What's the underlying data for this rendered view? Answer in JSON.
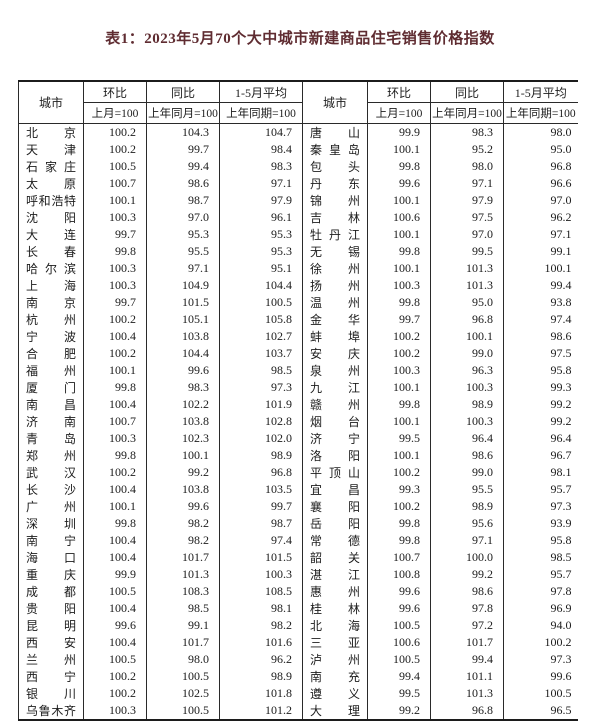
{
  "title": {
    "text": "表1：2023年5月70个大中城市新建商品住宅销售价格指数",
    "color": "#5f2c31"
  },
  "colors": {
    "border": "#2a2a2a",
    "text": "#1c1c1c",
    "background": "#ffffff"
  },
  "table": {
    "header": {
      "city": "城市",
      "mom": "环比",
      "yoy": "同比",
      "avg": "1-5月平均",
      "mom_base": "上月=100",
      "yoy_base": "上年同月=100",
      "avg_base": "上年同期=100"
    },
    "left_rows": [
      {
        "city": "北京",
        "mom": "100.2",
        "yoy": "104.3",
        "avg": "104.7"
      },
      {
        "city": "天津",
        "mom": "100.2",
        "yoy": "99.7",
        "avg": "98.4"
      },
      {
        "city": "石家庄",
        "mom": "100.5",
        "yoy": "99.4",
        "avg": "98.3"
      },
      {
        "city": "太原",
        "mom": "100.7",
        "yoy": "98.6",
        "avg": "97.1"
      },
      {
        "city": "呼和浩特",
        "mom": "100.1",
        "yoy": "98.7",
        "avg": "97.9"
      },
      {
        "city": "沈阳",
        "mom": "100.3",
        "yoy": "97.0",
        "avg": "96.1"
      },
      {
        "city": "大连",
        "mom": "99.7",
        "yoy": "95.3",
        "avg": "95.3"
      },
      {
        "city": "长春",
        "mom": "99.8",
        "yoy": "95.5",
        "avg": "95.3"
      },
      {
        "city": "哈尔滨",
        "mom": "100.3",
        "yoy": "97.1",
        "avg": "95.1"
      },
      {
        "city": "上海",
        "mom": "100.3",
        "yoy": "104.9",
        "avg": "104.4"
      },
      {
        "city": "南京",
        "mom": "99.7",
        "yoy": "101.5",
        "avg": "100.5"
      },
      {
        "city": "杭州",
        "mom": "100.2",
        "yoy": "105.1",
        "avg": "105.8"
      },
      {
        "city": "宁波",
        "mom": "100.4",
        "yoy": "103.8",
        "avg": "102.7"
      },
      {
        "city": "合肥",
        "mom": "100.2",
        "yoy": "104.4",
        "avg": "103.7"
      },
      {
        "city": "福州",
        "mom": "100.1",
        "yoy": "99.6",
        "avg": "98.5"
      },
      {
        "city": "厦门",
        "mom": "99.8",
        "yoy": "98.3",
        "avg": "97.3"
      },
      {
        "city": "南昌",
        "mom": "100.4",
        "yoy": "102.2",
        "avg": "101.9"
      },
      {
        "city": "济南",
        "mom": "100.7",
        "yoy": "103.8",
        "avg": "102.8"
      },
      {
        "city": "青岛",
        "mom": "100.3",
        "yoy": "102.3",
        "avg": "102.0"
      },
      {
        "city": "郑州",
        "mom": "99.8",
        "yoy": "100.1",
        "avg": "98.9"
      },
      {
        "city": "武汉",
        "mom": "100.2",
        "yoy": "99.2",
        "avg": "96.8"
      },
      {
        "city": "长沙",
        "mom": "100.4",
        "yoy": "103.8",
        "avg": "103.5"
      },
      {
        "city": "广州",
        "mom": "100.1",
        "yoy": "99.6",
        "avg": "99.7"
      },
      {
        "city": "深圳",
        "mom": "99.8",
        "yoy": "98.2",
        "avg": "98.7"
      },
      {
        "city": "南宁",
        "mom": "100.4",
        "yoy": "98.2",
        "avg": "97.4"
      },
      {
        "city": "海口",
        "mom": "100.4",
        "yoy": "101.7",
        "avg": "101.5"
      },
      {
        "city": "重庆",
        "mom": "99.9",
        "yoy": "101.3",
        "avg": "100.3"
      },
      {
        "city": "成都",
        "mom": "100.5",
        "yoy": "108.3",
        "avg": "108.5"
      },
      {
        "city": "贵阳",
        "mom": "100.4",
        "yoy": "98.5",
        "avg": "98.1"
      },
      {
        "city": "昆明",
        "mom": "99.6",
        "yoy": "99.1",
        "avg": "98.2"
      },
      {
        "city": "西安",
        "mom": "100.4",
        "yoy": "101.7",
        "avg": "101.6"
      },
      {
        "city": "兰州",
        "mom": "100.5",
        "yoy": "98.0",
        "avg": "96.2"
      },
      {
        "city": "西宁",
        "mom": "100.2",
        "yoy": "100.5",
        "avg": "98.9"
      },
      {
        "city": "银川",
        "mom": "100.2",
        "yoy": "102.5",
        "avg": "101.8"
      },
      {
        "city": "乌鲁木齐",
        "mom": "100.3",
        "yoy": "100.5",
        "avg": "101.2"
      }
    ],
    "right_rows": [
      {
        "city": "唐山",
        "mom": "99.9",
        "yoy": "98.3",
        "avg": "98.0"
      },
      {
        "city": "秦皇岛",
        "mom": "100.1",
        "yoy": "95.2",
        "avg": "95.0"
      },
      {
        "city": "包头",
        "mom": "99.8",
        "yoy": "98.0",
        "avg": "96.8"
      },
      {
        "city": "丹东",
        "mom": "99.6",
        "yoy": "97.1",
        "avg": "96.6"
      },
      {
        "city": "锦州",
        "mom": "100.1",
        "yoy": "97.9",
        "avg": "97.0"
      },
      {
        "city": "吉林",
        "mom": "100.6",
        "yoy": "97.5",
        "avg": "96.2"
      },
      {
        "city": "牡丹江",
        "mom": "100.1",
        "yoy": "97.0",
        "avg": "97.1"
      },
      {
        "city": "无锡",
        "mom": "99.8",
        "yoy": "99.5",
        "avg": "99.1"
      },
      {
        "city": "徐州",
        "mom": "100.1",
        "yoy": "101.3",
        "avg": "100.1"
      },
      {
        "city": "扬州",
        "mom": "100.3",
        "yoy": "101.3",
        "avg": "99.4"
      },
      {
        "city": "温州",
        "mom": "99.8",
        "yoy": "95.0",
        "avg": "93.8"
      },
      {
        "city": "金华",
        "mom": "99.7",
        "yoy": "96.8",
        "avg": "97.4"
      },
      {
        "city": "蚌埠",
        "mom": "100.2",
        "yoy": "100.1",
        "avg": "98.6"
      },
      {
        "city": "安庆",
        "mom": "100.2",
        "yoy": "99.0",
        "avg": "97.5"
      },
      {
        "city": "泉州",
        "mom": "100.3",
        "yoy": "96.3",
        "avg": "95.8"
      },
      {
        "city": "九江",
        "mom": "100.1",
        "yoy": "100.3",
        "avg": "99.3"
      },
      {
        "city": "赣州",
        "mom": "99.8",
        "yoy": "98.9",
        "avg": "99.2"
      },
      {
        "city": "烟台",
        "mom": "100.1",
        "yoy": "100.3",
        "avg": "99.2"
      },
      {
        "city": "济宁",
        "mom": "99.5",
        "yoy": "96.4",
        "avg": "96.4"
      },
      {
        "city": "洛阳",
        "mom": "100.1",
        "yoy": "98.6",
        "avg": "96.7"
      },
      {
        "city": "平顶山",
        "mom": "100.2",
        "yoy": "99.0",
        "avg": "98.1"
      },
      {
        "city": "宜昌",
        "mom": "99.3",
        "yoy": "95.5",
        "avg": "95.7"
      },
      {
        "city": "襄阳",
        "mom": "100.2",
        "yoy": "98.9",
        "avg": "97.3"
      },
      {
        "city": "岳阳",
        "mom": "99.8",
        "yoy": "95.6",
        "avg": "93.9"
      },
      {
        "city": "常德",
        "mom": "99.8",
        "yoy": "97.1",
        "avg": "95.8"
      },
      {
        "city": "韶关",
        "mom": "100.7",
        "yoy": "100.0",
        "avg": "98.5"
      },
      {
        "city": "湛江",
        "mom": "100.8",
        "yoy": "99.2",
        "avg": "95.7"
      },
      {
        "city": "惠州",
        "mom": "99.6",
        "yoy": "98.6",
        "avg": "97.8"
      },
      {
        "city": "桂林",
        "mom": "99.6",
        "yoy": "97.8",
        "avg": "96.9"
      },
      {
        "city": "北海",
        "mom": "100.5",
        "yoy": "97.2",
        "avg": "94.0"
      },
      {
        "city": "三亚",
        "mom": "100.6",
        "yoy": "101.7",
        "avg": "100.2"
      },
      {
        "city": "泸州",
        "mom": "100.5",
        "yoy": "99.4",
        "avg": "97.3"
      },
      {
        "city": "南充",
        "mom": "99.4",
        "yoy": "101.1",
        "avg": "99.6"
      },
      {
        "city": "遵义",
        "mom": "99.5",
        "yoy": "101.3",
        "avg": "100.5"
      },
      {
        "city": "大理",
        "mom": "99.2",
        "yoy": "96.8",
        "avg": "96.5"
      }
    ]
  }
}
